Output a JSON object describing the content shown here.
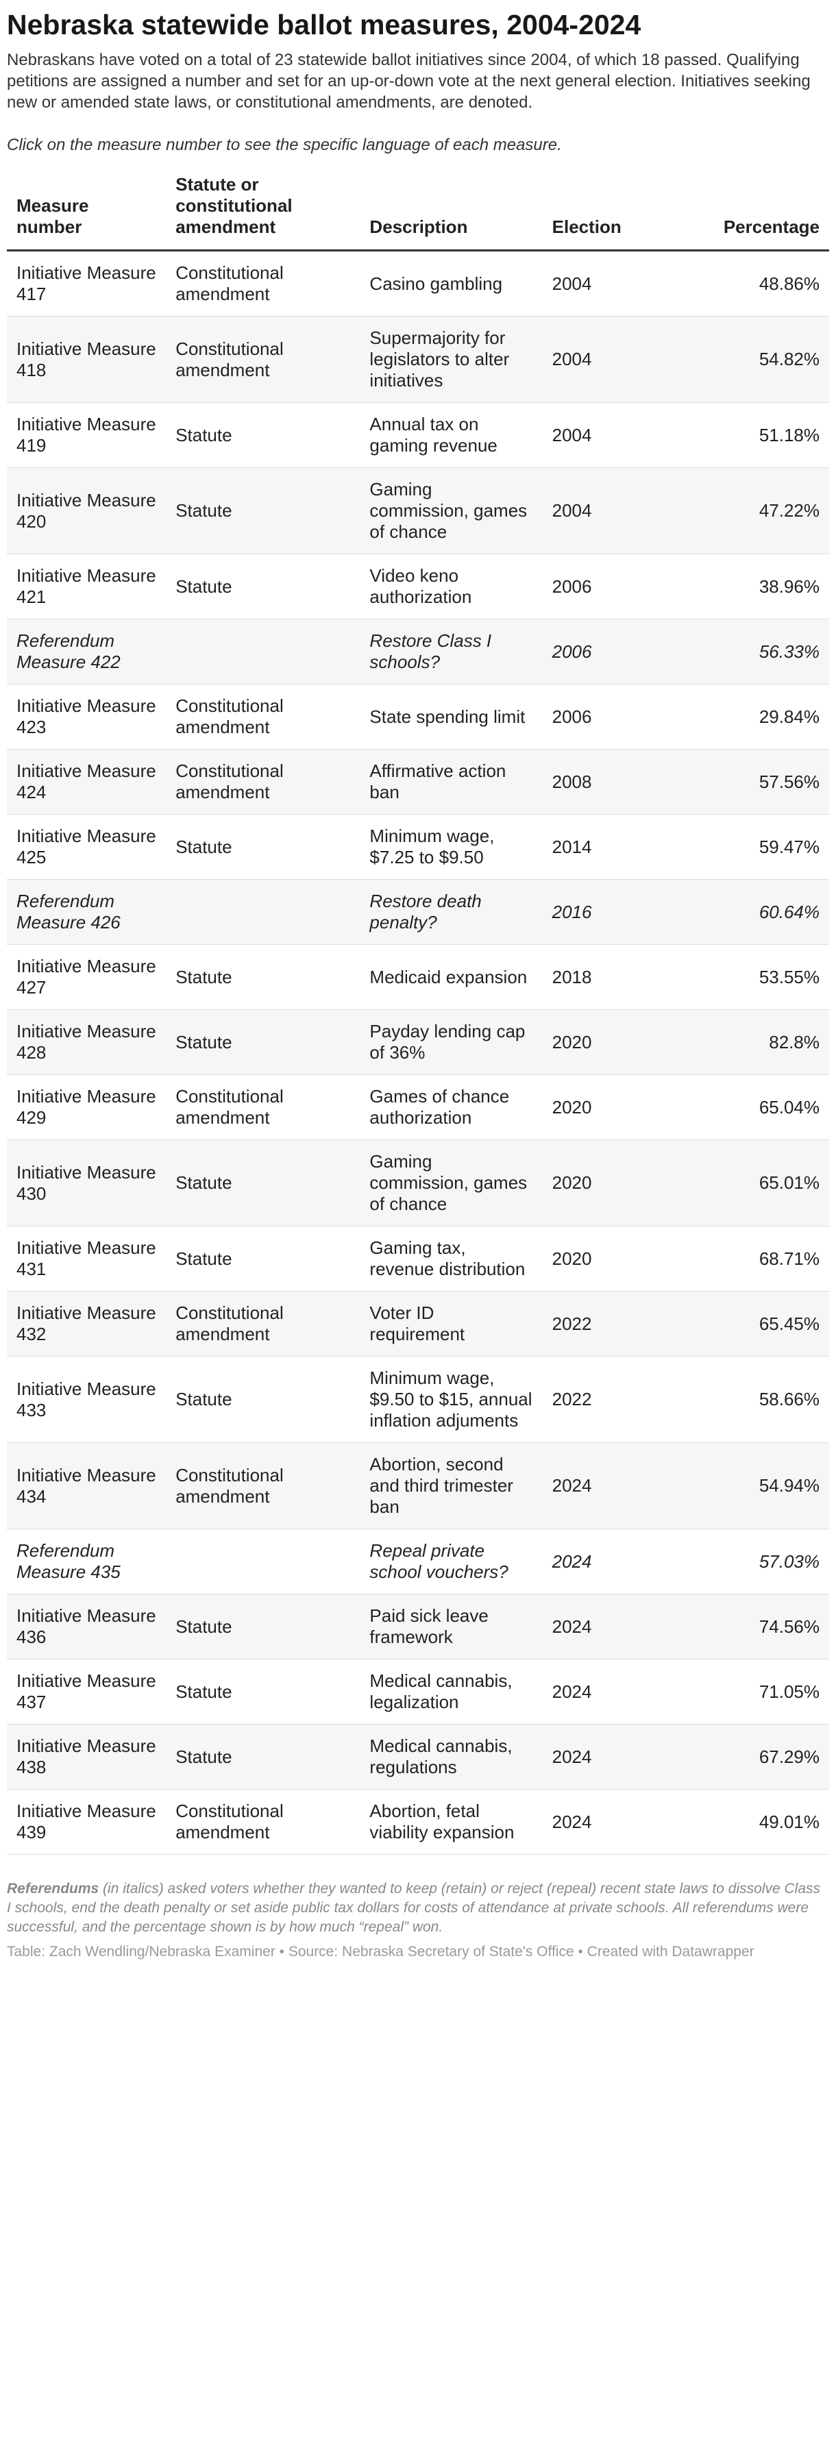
{
  "title": "Nebraska statewide ballot measures, 2004-2024",
  "description": "Nebraskans have voted on a total of 23 statewide ballot initiatives since 2004, of which 18 passed. Qualifying petitions are assigned a number and set for an up-or-down vote at the next general election. Initiatives seeking new or amended state laws, or constitutional amendments, are denoted.",
  "note": "Click on the measure number to see the specific language of each measure.",
  "chart_data": {
    "type": "table",
    "columns": [
      "Measure number",
      "Statute or constitutional amendment",
      "Description",
      "Election",
      "Percentage"
    ],
    "rows": [
      {
        "measure": "Initiative Measure 417",
        "type": "Constitutional amendment",
        "description": "Casino gambling",
        "election": "2004",
        "percentage": "48.86%",
        "referendum": false
      },
      {
        "measure": "Initiative Measure 418",
        "type": "Constitutional amendment",
        "description": "Supermajority for legislators to alter initiatives",
        "election": "2004",
        "percentage": "54.82%",
        "referendum": false
      },
      {
        "measure": "Initiative Measure 419",
        "type": "Statute",
        "description": "Annual tax on gaming revenue",
        "election": "2004",
        "percentage": "51.18%",
        "referendum": false
      },
      {
        "measure": "Initiative Measure 420",
        "type": "Statute",
        "description": "Gaming commission, games of chance",
        "election": "2004",
        "percentage": "47.22%",
        "referendum": false
      },
      {
        "measure": "Initiative Measure 421",
        "type": "Statute",
        "description": "Video keno authorization",
        "election": "2006",
        "percentage": "38.96%",
        "referendum": false
      },
      {
        "measure": "Referendum Measure 422",
        "type": "",
        "description": "Restore Class I schools?",
        "election": "2006",
        "percentage": "56.33%",
        "referendum": true
      },
      {
        "measure": "Initiative Measure 423",
        "type": "Constitutional amendment",
        "description": "State spending limit",
        "election": "2006",
        "percentage": "29.84%",
        "referendum": false
      },
      {
        "measure": "Initiative Measure 424",
        "type": "Constitutional amendment",
        "description": "Affirmative action ban",
        "election": "2008",
        "percentage": "57.56%",
        "referendum": false
      },
      {
        "measure": "Initiative Measure 425",
        "type": "Statute",
        "description": "Minimum wage, $7.25 to $9.50",
        "election": "2014",
        "percentage": "59.47%",
        "referendum": false
      },
      {
        "measure": "Referendum Measure 426",
        "type": "",
        "description": "Restore death penalty?",
        "election": "2016",
        "percentage": "60.64%",
        "referendum": true
      },
      {
        "measure": "Initiative Measure 427",
        "type": "Statute",
        "description": "Medicaid expansion",
        "election": "2018",
        "percentage": "53.55%",
        "referendum": false
      },
      {
        "measure": "Initiative Measure 428",
        "type": "Statute",
        "description": "Payday lending cap of 36%",
        "election": "2020",
        "percentage": "82.8%",
        "referendum": false
      },
      {
        "measure": "Initiative Measure 429",
        "type": "Constitutional amendment",
        "description": "Games of chance authorization",
        "election": "2020",
        "percentage": "65.04%",
        "referendum": false
      },
      {
        "measure": "Initiative Measure 430",
        "type": "Statute",
        "description": "Gaming commission, games of chance",
        "election": "2020",
        "percentage": "65.01%",
        "referendum": false
      },
      {
        "measure": "Initiative Measure 431",
        "type": "Statute",
        "description": "Gaming tax, revenue distribution",
        "election": "2020",
        "percentage": "68.71%",
        "referendum": false
      },
      {
        "measure": "Initiative Measure 432",
        "type": "Constitutional amendment",
        "description": "Voter ID requirement",
        "election": "2022",
        "percentage": "65.45%",
        "referendum": false
      },
      {
        "measure": "Initiative Measure 433",
        "type": "Statute",
        "description": "Minimum wage, $9.50 to $15, annual inflation adjuments",
        "election": "2022",
        "percentage": "58.66%",
        "referendum": false
      },
      {
        "measure": "Initiative Measure 434",
        "type": "Constitutional amendment",
        "description": "Abortion, second and third trimester ban",
        "election": "2024",
        "percentage": "54.94%",
        "referendum": false
      },
      {
        "measure": "Referendum Measure 435",
        "type": "",
        "description": "Repeal private school vouchers?",
        "election": "2024",
        "percentage": "57.03%",
        "referendum": true
      },
      {
        "measure": "Initiative Measure 436",
        "type": "Statute",
        "description": "Paid sick leave framework",
        "election": "2024",
        "percentage": "74.56%",
        "referendum": false
      },
      {
        "measure": "Initiative Measure 437",
        "type": "Statute",
        "description": "Medical cannabis, legalization",
        "election": "2024",
        "percentage": "71.05%",
        "referendum": false
      },
      {
        "measure": "Initiative Measure 438",
        "type": "Statute",
        "description": "Medical cannabis, regulations",
        "election": "2024",
        "percentage": "67.29%",
        "referendum": false
      },
      {
        "measure": "Initiative Measure 439",
        "type": "Constitutional amendment",
        "description": "Abortion, fetal viability expansion",
        "election": "2024",
        "percentage": "49.01%",
        "referendum": false
      }
    ]
  },
  "footnote": {
    "bold": "Referendums",
    "text": " (in italics) asked voters whether they wanted to keep (retain) or reject (repeal) recent state laws to dissolve Class I schools, end the death penalty or set aside public tax dollars for costs of attendance at private schools. All referendums were successful, and the percentage shown is by how much “repeal” won."
  },
  "credit": "Table: Zach Wendling/Nebraska Examiner • Source: Nebraska Secretary of State's Office • Created with Datawrapper"
}
